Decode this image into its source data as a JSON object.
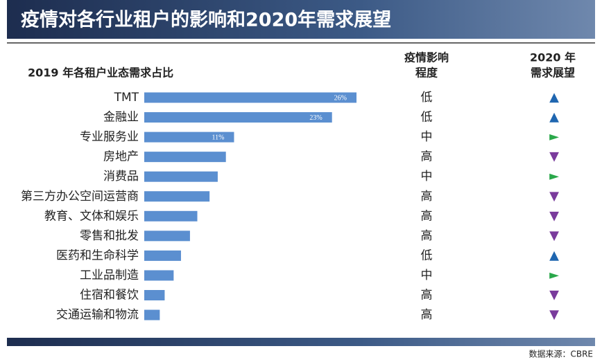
{
  "chart_data": {
    "type": "bar",
    "title": "疫情对各行业租户的影响和2020年需求展望",
    "subtitle": "2019 年各租户业态需求占比",
    "impact_header": [
      "疫情影响",
      "程度"
    ],
    "outlook_header": [
      "2020 年",
      "需求展望"
    ],
    "categories": [
      "TMT",
      "金融业",
      "专业服务业",
      "房地产",
      "消费品",
      "第三方办公空间运营商",
      "教育、文体和娱乐",
      "零售和批发",
      "医药和生命科学",
      "工业品制造",
      "住宿和餐饮",
      "交通运输和物流"
    ],
    "values": [
      26,
      23,
      11,
      10,
      9,
      8,
      6.5,
      5.6,
      4.5,
      3.6,
      2.5,
      1.9
    ],
    "value_labels": [
      "26%",
      "23%",
      "11%",
      null,
      null,
      null,
      null,
      null,
      null,
      null,
      null,
      null
    ],
    "color": "#5b8fd0",
    "impact": [
      "低",
      "低",
      "中",
      "高",
      "中",
      "高",
      "高",
      "高",
      "低",
      "中",
      "高",
      "高"
    ],
    "outlook": [
      "▲",
      "▲",
      "►",
      "▼",
      "►",
      "▼",
      "▼",
      "▼",
      "▲",
      "►",
      "▼",
      "▼"
    ],
    "outlook_colors": [
      "#1f66b0",
      "#1f66b0",
      "#2aa84a",
      "#7a3b9c",
      "#2aa84a",
      "#7a3b9c",
      "#7a3b9c",
      "#7a3b9c",
      "#1f66b0",
      "#2aa84a",
      "#7a3b9c",
      "#7a3b9c"
    ],
    "source": "数据来源：CBRE"
  }
}
